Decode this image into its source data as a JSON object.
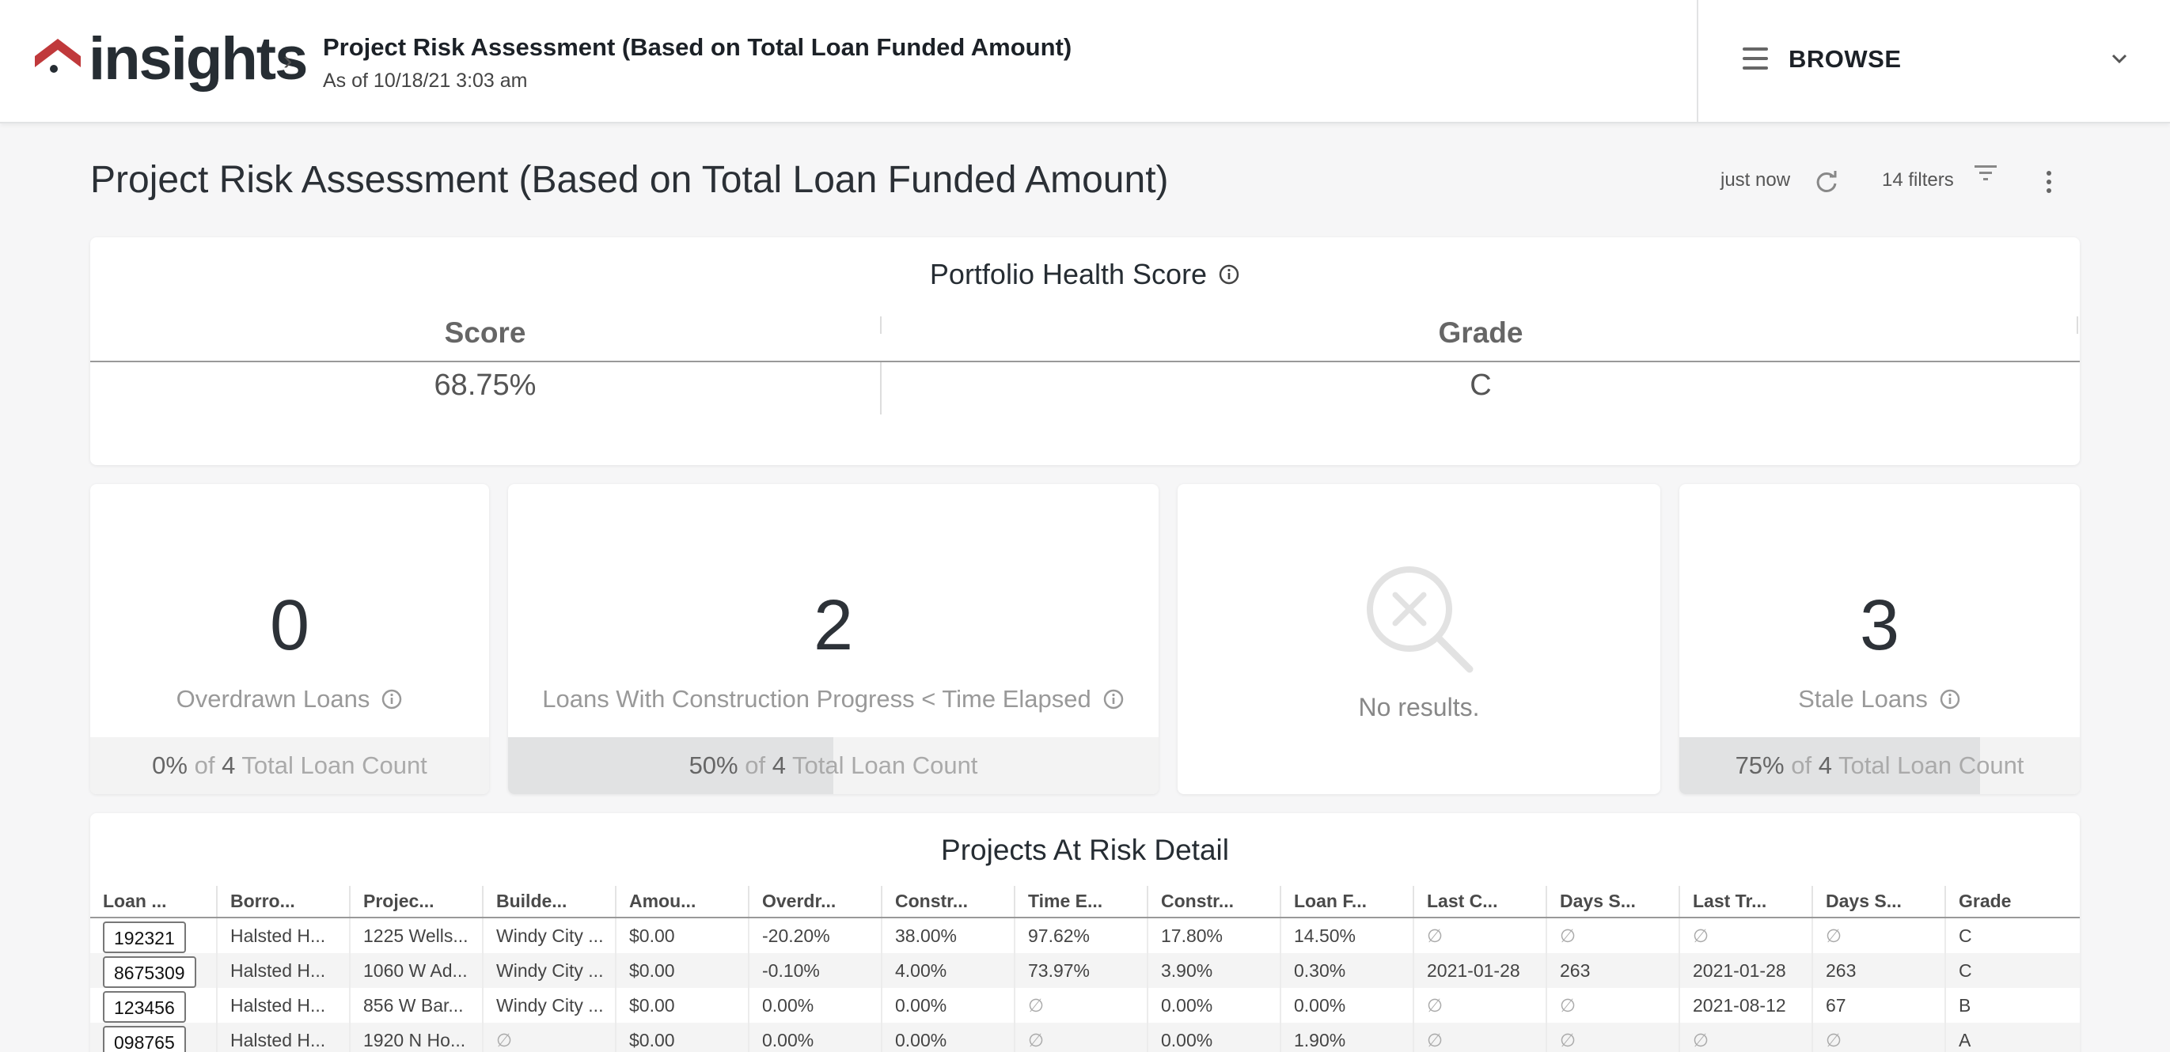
{
  "header": {
    "logo_text": "insights",
    "title": "Project Risk Assessment (Based on Total Loan Funded Amount)",
    "subtitle": "As of 10/18/21 3:03 am",
    "browse_label": "BROWSE"
  },
  "page": {
    "title": "Project Risk Assessment (Based on Total Loan Funded Amount)",
    "updated": "just now",
    "filters": "14 filters"
  },
  "health": {
    "title": "Portfolio Health Score",
    "score_header": "Score",
    "grade_header": "Grade",
    "score_value": "68.75%",
    "grade_value": "C"
  },
  "kpis": {
    "overdrawn": {
      "value": "0",
      "label": "Overdrawn Loans",
      "percent": "0%",
      "of": "of",
      "total": "4",
      "footer": "Total Loan Count",
      "fill": 0.0
    },
    "construction": {
      "value": "2",
      "label": "Loans With Construction Progress < Time Elapsed",
      "percent": "50%",
      "of": "of",
      "total": "4",
      "footer": "Total Loan Count",
      "fill": 0.5
    },
    "no_results": {
      "label": "No results."
    },
    "stale": {
      "value": "3",
      "label": "Stale Loans",
      "percent": "75%",
      "of": "of",
      "total": "4",
      "footer": "Total Loan Count",
      "fill": 0.75
    }
  },
  "detail": {
    "title": "Projects At Risk Detail",
    "columns": [
      "Loan ...",
      "Borro...",
      "Projec...",
      "Builde...",
      "Amou...",
      "Overdr...",
      "Constr...",
      "Time E...",
      "Constr...",
      "Loan F...",
      "Last C...",
      "Days S...",
      "Last Tr...",
      "Days S...",
      "Grade"
    ],
    "rows": [
      [
        "192321",
        "Halsted H...",
        "1225 Wells...",
        "Windy City ...",
        "$0.00",
        "-20.20%",
        "38.00%",
        "97.62%",
        "17.80%",
        "14.50%",
        "∅",
        "∅",
        "∅",
        "∅",
        "C"
      ],
      [
        "8675309",
        "Halsted H...",
        "1060 W Ad...",
        "Windy City ...",
        "$0.00",
        "-0.10%",
        "4.00%",
        "73.97%",
        "3.90%",
        "0.30%",
        "2021-01-28",
        "263",
        "2021-01-28",
        "263",
        "C"
      ],
      [
        "123456",
        "Halsted H...",
        "856 W Bar...",
        "Windy City ...",
        "$0.00",
        "0.00%",
        "0.00%",
        "∅",
        "0.00%",
        "0.00%",
        "∅",
        "∅",
        "2021-08-12",
        "67",
        "B"
      ],
      [
        "098765",
        "Halsted H...",
        "1920 N Ho...",
        "∅",
        "$0.00",
        "0.00%",
        "0.00%",
        "∅",
        "0.00%",
        "1.90%",
        "∅",
        "∅",
        "∅",
        "∅",
        "A"
      ]
    ]
  },
  "colors": {
    "brand_red": "#c0393b",
    "text_dark": "#262d33",
    "muted": "#999999"
  },
  "icons": [
    "logo-house-icon",
    "chevron-right-icon",
    "hamburger-icon",
    "chevron-down-icon",
    "refresh-icon",
    "filter-icon",
    "more-vert-icon",
    "info-icon",
    "no-results-magnifier-icon"
  ]
}
